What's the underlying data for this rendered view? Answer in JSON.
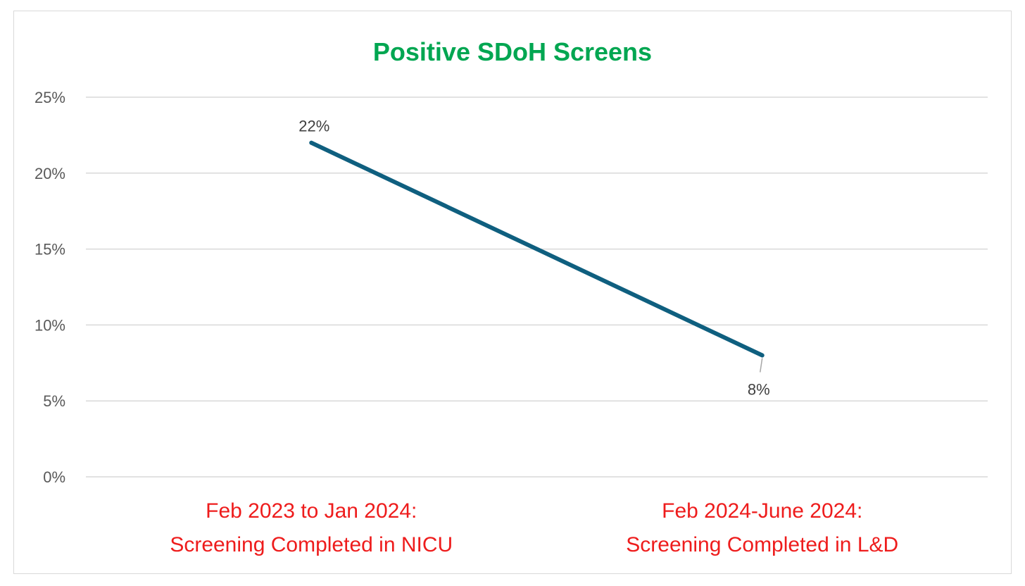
{
  "chart_data": {
    "type": "line",
    "title": "Positive SDoH Screens",
    "categories": [
      [
        "Feb 2023 to Jan 2024:",
        "Screening Completed in NICU"
      ],
      [
        "Feb 2024-June 2024:",
        "Screening Completed in L&D"
      ]
    ],
    "series": [
      {
        "values": [
          22,
          8
        ],
        "data_labels": [
          "22%",
          "8%"
        ]
      }
    ],
    "ylim": [
      0,
      25
    ],
    "yticks": [
      0,
      5,
      10,
      15,
      20,
      25
    ],
    "ytick_labels": [
      "0%",
      "5%",
      "10%",
      "15%",
      "20%",
      "25%"
    ],
    "xlabel": "",
    "ylabel": "",
    "grid": true,
    "legend": "none"
  },
  "colors": {
    "title": "#00a651",
    "line": "#0f5f7f",
    "category_labels": "#ee1c1c",
    "gridline": "#d9d9d9"
  }
}
